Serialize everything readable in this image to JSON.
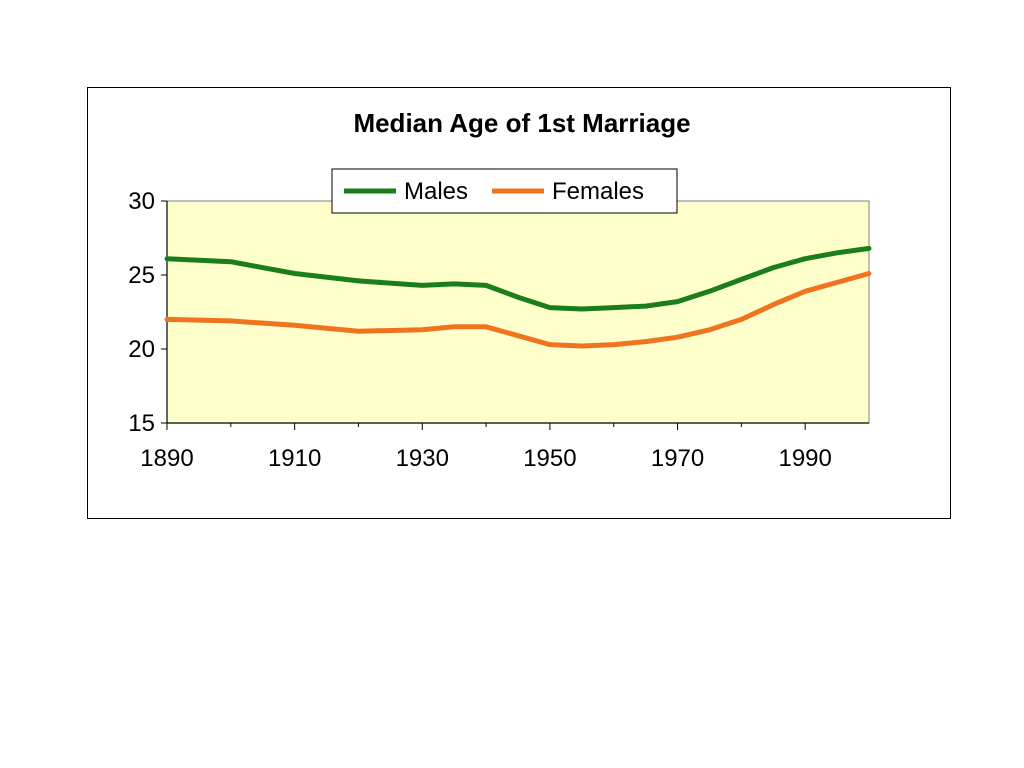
{
  "chart_data": {
    "type": "line",
    "title": "Median Age of 1st Marriage",
    "xlabel": "",
    "ylabel": "",
    "xlim": [
      1890,
      2000
    ],
    "ylim": [
      15,
      30
    ],
    "x_ticks": [
      "1890",
      "1910",
      "1930",
      "1950",
      "1970",
      "1990"
    ],
    "y_ticks": [
      "15",
      "20",
      "25",
      "30"
    ],
    "grid": false,
    "legend": "top-center",
    "plot_background": "#ffffcc",
    "series": [
      {
        "name": "Males",
        "color": "#1a7f1a",
        "x": [
          1890,
          1900,
          1910,
          1920,
          1930,
          1935,
          1940,
          1945,
          1950,
          1955,
          1960,
          1965,
          1970,
          1975,
          1980,
          1985,
          1990,
          1995,
          2000
        ],
        "y": [
          26.1,
          25.9,
          25.1,
          24.6,
          24.3,
          24.4,
          24.3,
          23.5,
          22.8,
          22.7,
          22.8,
          22.9,
          23.2,
          23.9,
          24.7,
          25.5,
          26.1,
          26.5,
          26.8
        ]
      },
      {
        "name": "Females",
        "color": "#f07420",
        "x": [
          1890,
          1900,
          1910,
          1920,
          1930,
          1935,
          1940,
          1945,
          1950,
          1955,
          1960,
          1965,
          1970,
          1975,
          1980,
          1985,
          1990,
          1995,
          2000
        ],
        "y": [
          22.0,
          21.9,
          21.6,
          21.2,
          21.3,
          21.5,
          21.5,
          20.9,
          20.3,
          20.2,
          20.3,
          20.5,
          20.8,
          21.3,
          22.0,
          23.0,
          23.9,
          24.5,
          25.1
        ]
      }
    ]
  }
}
